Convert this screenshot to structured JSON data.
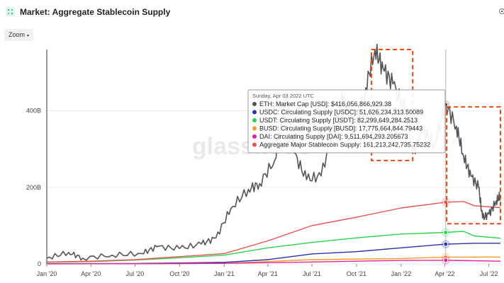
{
  "header": {
    "title": "Market: Aggregate Stablecoin Supply"
  },
  "zoom": {
    "label": "Zoom",
    "caret": "▾"
  },
  "colors": {
    "eth": "#555555",
    "usdc": "#2733a8",
    "usdt": "#2ad44a",
    "busd": "#f39a2a",
    "dai": "#e0249c",
    "aggregate": "#e85552",
    "annotation": "#e64a19"
  },
  "watermark": "glassnode",
  "chart_data": {
    "type": "line",
    "title": "Market: Aggregate Stablecoin Supply",
    "x_ticks": [
      "Jan '20",
      "Apr '20",
      "Jul '20",
      "Oct '20",
      "Jan '21",
      "Apr '21",
      "Jul '21",
      "Oct '21",
      "Jan '22",
      "Apr '22",
      "Jul '22"
    ],
    "x_range": [
      "2020-01-01",
      "2022-07-25"
    ],
    "y_ticks": [
      "0",
      "200B",
      "400B"
    ],
    "ylim": [
      0,
      560
    ],
    "y_unit": "B USD",
    "grid": true,
    "crosshair_date": "2022-04-03",
    "series": [
      {
        "name": "ETH: Market Cap [USD]",
        "color": "#555555",
        "points": [
          [
            "2020-01-01",
            15
          ],
          [
            "2020-02-15",
            30
          ],
          [
            "2020-03-15",
            15
          ],
          [
            "2020-05-15",
            23
          ],
          [
            "2020-07-15",
            27
          ],
          [
            "2020-08-15",
            45
          ],
          [
            "2020-10-01",
            40
          ],
          [
            "2020-11-15",
            52
          ],
          [
            "2020-12-15",
            68
          ],
          [
            "2021-01-15",
            145
          ],
          [
            "2021-02-20",
            195
          ],
          [
            "2021-03-15",
            210
          ],
          [
            "2021-04-15",
            270
          ],
          [
            "2021-05-10",
            445
          ],
          [
            "2021-05-25",
            290
          ],
          [
            "2021-06-20",
            220
          ],
          [
            "2021-07-20",
            230
          ],
          [
            "2021-08-20",
            380
          ],
          [
            "2021-09-05",
            440
          ],
          [
            "2021-09-25",
            350
          ],
          [
            "2021-10-20",
            460
          ],
          [
            "2021-11-08",
            560
          ],
          [
            "2021-11-25",
            510
          ],
          [
            "2021-12-15",
            470
          ],
          [
            "2022-01-10",
            400
          ],
          [
            "2022-01-25",
            290
          ],
          [
            "2022-02-15",
            350
          ],
          [
            "2022-03-10",
            310
          ],
          [
            "2022-04-03",
            416
          ],
          [
            "2022-04-25",
            360
          ],
          [
            "2022-05-10",
            280
          ],
          [
            "2022-05-25",
            230
          ],
          [
            "2022-06-10",
            200
          ],
          [
            "2022-06-18",
            120
          ],
          [
            "2022-07-01",
            130
          ],
          [
            "2022-07-15",
            160
          ],
          [
            "2022-07-25",
            180
          ]
        ]
      },
      {
        "name": "USDC: Circulating Supply [USDC]",
        "color": "#2733a8",
        "points": [
          [
            "2020-01-01",
            0.5
          ],
          [
            "2020-07-01",
            1
          ],
          [
            "2021-01-01",
            4
          ],
          [
            "2021-04-01",
            11
          ],
          [
            "2021-07-01",
            26
          ],
          [
            "2021-10-01",
            32
          ],
          [
            "2022-01-01",
            42
          ],
          [
            "2022-04-03",
            51.6
          ],
          [
            "2022-06-01",
            54
          ],
          [
            "2022-07-25",
            54
          ]
        ]
      },
      {
        "name": "USDT: Circulating Supply [USDT]",
        "color": "#2ad44a",
        "points": [
          [
            "2020-01-01",
            4
          ],
          [
            "2020-04-01",
            6
          ],
          [
            "2020-07-01",
            10
          ],
          [
            "2020-10-01",
            16
          ],
          [
            "2021-01-01",
            23
          ],
          [
            "2021-04-01",
            42
          ],
          [
            "2021-07-01",
            56
          ],
          [
            "2021-10-01",
            68
          ],
          [
            "2022-01-01",
            78
          ],
          [
            "2022-04-03",
            82.3
          ],
          [
            "2022-05-10",
            85
          ],
          [
            "2022-06-01",
            73
          ],
          [
            "2022-07-25",
            67
          ]
        ]
      },
      {
        "name": "BUSD: Circulating Supply [BUSD]",
        "color": "#f39a2a",
        "points": [
          [
            "2020-01-01",
            0.2
          ],
          [
            "2020-07-01",
            0.5
          ],
          [
            "2021-01-01",
            1.5
          ],
          [
            "2021-07-01",
            11
          ],
          [
            "2022-01-01",
            14
          ],
          [
            "2022-04-03",
            17.8
          ],
          [
            "2022-07-25",
            18
          ]
        ]
      },
      {
        "name": "DAI: Circulating Supply [DAI]",
        "color": "#e0249c",
        "points": [
          [
            "2020-01-01",
            0.1
          ],
          [
            "2020-07-01",
            0.3
          ],
          [
            "2021-01-01",
            1.5
          ],
          [
            "2021-07-01",
            5
          ],
          [
            "2022-01-01",
            9
          ],
          [
            "2022-04-03",
            9.5
          ],
          [
            "2022-07-25",
            7
          ]
        ]
      },
      {
        "name": "Aggregate Major Stablecoin Supply",
        "color": "#e85552",
        "points": [
          [
            "2020-01-01",
            5
          ],
          [
            "2020-04-01",
            7
          ],
          [
            "2020-07-01",
            11
          ],
          [
            "2020-10-01",
            19
          ],
          [
            "2021-01-01",
            27
          ],
          [
            "2021-04-01",
            60
          ],
          [
            "2021-07-01",
            100
          ],
          [
            "2021-10-01",
            122
          ],
          [
            "2022-01-01",
            146
          ],
          [
            "2022-04-03",
            161.2
          ],
          [
            "2022-05-10",
            163
          ],
          [
            "2022-06-01",
            152
          ],
          [
            "2022-07-25",
            147
          ]
        ]
      }
    ],
    "tooltip": {
      "date": "Sunday, Apr 03 2022 UTC",
      "rows": [
        {
          "label": "ETH: Market Cap [USD]: $416,056,866,929.38",
          "color": "#555555"
        },
        {
          "label": "USDC: Circulating Supply [USDC]: 51,626,234,313.50089",
          "color": "#2733a8"
        },
        {
          "label": "USDT: Circulating Supply [USDT]: 82,299,649,284.2513",
          "color": "#2ad44a"
        },
        {
          "label": "BUSD: Circulating Supply [BUSD]: 17,775,664,844.79443",
          "color": "#f39a2a"
        },
        {
          "label": "DAI: Circulating Supply [DAI]: 9,511,694,293.205673",
          "color": "#e0249c"
        },
        {
          "label": "Aggregate Major Stablecoin Supply: 161,213,242,735.75232",
          "color": "#e85552"
        }
      ]
    },
    "annotations": [
      {
        "date_from": "2021-11-01",
        "date_to": "2022-01-25",
        "y_from": 270,
        "y_to": 560
      },
      {
        "date_from": "2022-04-05",
        "date_to": "2022-07-25",
        "y_from": 105,
        "y_to": 410
      }
    ]
  }
}
